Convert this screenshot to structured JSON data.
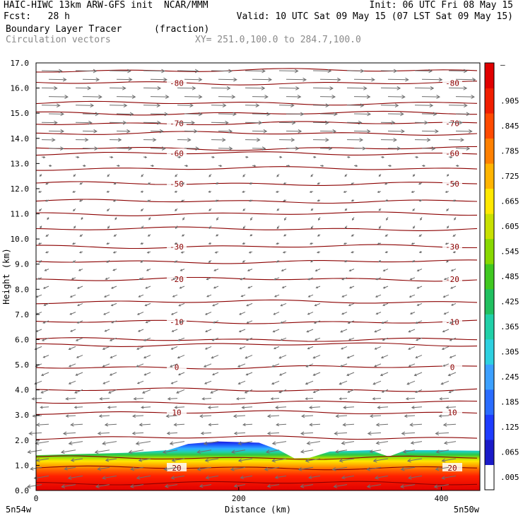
{
  "header": {
    "line1_left": "HAIC-HIWC 13km ARW-GFS init  NCAR/MMM",
    "line1_right": "Init: 06 UTC Fri 08 May 15",
    "line2_left": "Fcst:   28 h",
    "line2_right": "Valid: 10 UTC Sat 09 May 15 (07 LST Sat 09 May 15)",
    "field_name": "Boundary Layer Tracer",
    "field_unit": "(fraction)",
    "vector_name": "Circulation vectors",
    "cross_section": "XY= 251.0,100.0 to 284.7,100.0"
  },
  "chart_data": {
    "type": "heatmap",
    "title": "Boundary Layer Tracer (fraction)",
    "xlabel": "Distance (km)",
    "ylabel": "Height (km)",
    "xlim": [
      0,
      438
    ],
    "ylim": [
      0.0,
      17.0
    ],
    "x_ticks": [
      0,
      200,
      400
    ],
    "y_ticks": [
      "0.0",
      "1.0",
      "2.0",
      "3.0",
      "4.0",
      "5.0",
      "6.0",
      "7.0",
      "8.0",
      "9.0",
      "10.0",
      "11.0",
      "12.0",
      "13.0",
      "14.0",
      "15.0",
      "16.0",
      "17.0"
    ],
    "x_end_labels": {
      "left": "5n54w",
      "right": "5n50w"
    },
    "colorbar": {
      "labels": [
        ".005",
        ".065",
        ".125",
        ".185",
        ".245",
        ".305",
        ".365",
        ".425",
        ".485",
        ".545",
        ".605",
        ".665",
        ".725",
        ".785",
        ".845",
        ".905"
      ],
      "top_label": "–",
      "colors": [
        "#ffffff",
        "#1a1ac8",
        "#1e3cff",
        "#2a6cff",
        "#3ca0ff",
        "#2ed0e0",
        "#20d0a8",
        "#20c060",
        "#40c820",
        "#88d800",
        "#c8e000",
        "#ffe800",
        "#ffb400",
        "#ff8000",
        "#ff4a00",
        "#f01e00",
        "#e00000"
      ]
    },
    "tracer_top_km": [
      [
        0,
        1.4
      ],
      [
        90,
        1.5
      ],
      [
        130,
        1.6
      ],
      [
        150,
        1.85
      ],
      [
        180,
        1.95
      ],
      [
        220,
        1.9
      ],
      [
        240,
        1.6
      ],
      [
        255,
        1.28
      ],
      [
        270,
        1.3
      ],
      [
        290,
        1.55
      ],
      [
        330,
        1.6
      ],
      [
        348,
        1.35
      ],
      [
        365,
        1.6
      ],
      [
        400,
        1.6
      ],
      [
        438,
        1.58
      ]
    ],
    "temperature_contours": {
      "color": "#8b0000",
      "units": "C",
      "labeled_levels": [
        {
          "value": "-80",
          "height_km": 16.2
        },
        {
          "value": "-70",
          "height_km": 14.6
        },
        {
          "value": "-60",
          "height_km": 13.4
        },
        {
          "value": "-50",
          "height_km": 12.2
        },
        {
          "value": "-30",
          "height_km": 9.7
        },
        {
          "value": "-20",
          "height_km": 8.4
        },
        {
          "value": "-10",
          "height_km": 6.7
        },
        {
          "value": "0",
          "height_km": 4.9
        },
        {
          "value": "10",
          "height_km": 3.1
        },
        {
          "value": "20",
          "height_km": 0.9
        }
      ],
      "unlabeled_heights_km": [
        16.7,
        15.4,
        15.0,
        14.2,
        13.6,
        12.8,
        11.5,
        11.0,
        10.4,
        9.1,
        7.5,
        6.0,
        5.8,
        4.0,
        3.5,
        2.1,
        1.3,
        0.3
      ]
    }
  }
}
